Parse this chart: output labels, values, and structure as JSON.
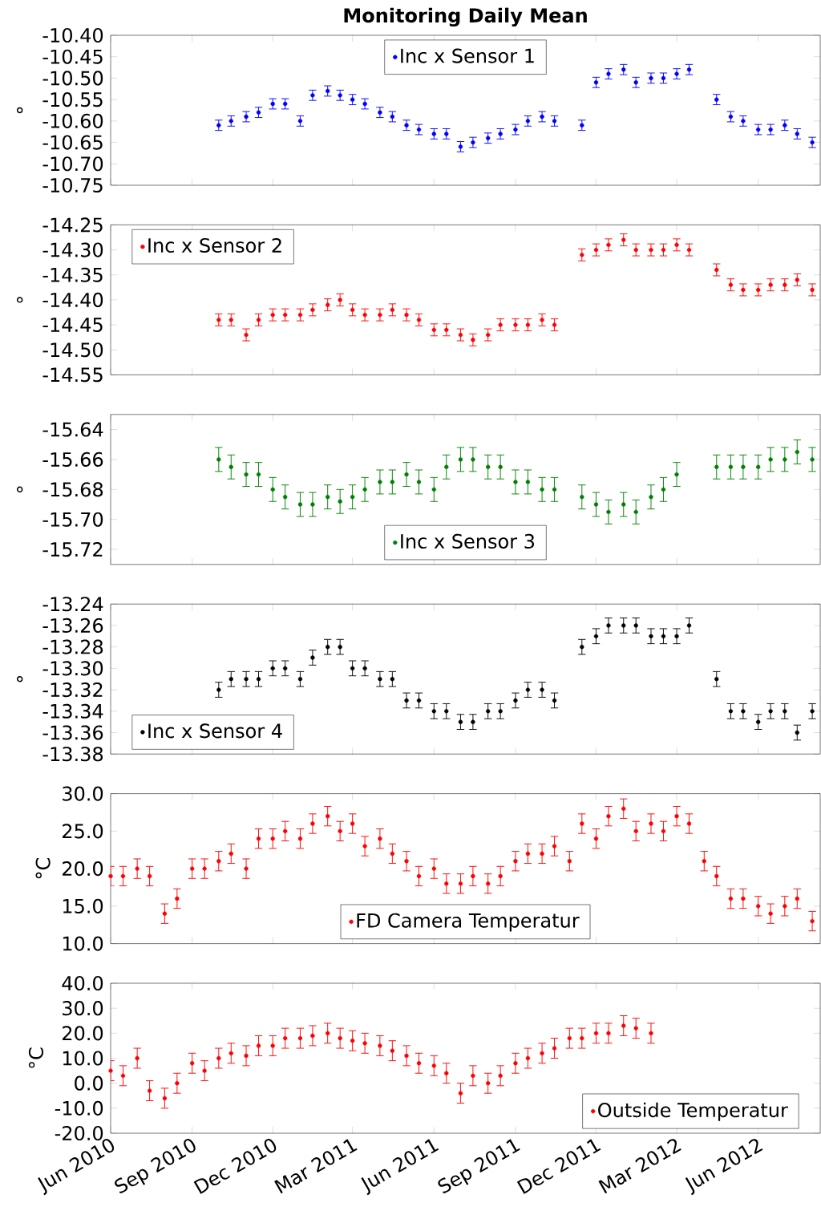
{
  "chart_data": [
    {
      "type": "scatter",
      "title": "Monitoring Daily Mean",
      "ylabel": "°",
      "marker": "circle",
      "legend": "top",
      "tick_labels": "y",
      "xlim": [
        "2010-06-01",
        "2012-08-10"
      ],
      "ylim": [
        -10.75,
        -10.4
      ],
      "yticks": [
        {
          "value": -10.75,
          "label": "-10.75"
        },
        {
          "value": -10.7,
          "label": "-10.70"
        },
        {
          "value": -10.65,
          "label": "-10.65"
        },
        {
          "value": -10.6,
          "label": "-10.60"
        },
        {
          "value": -10.55,
          "label": "-10.55"
        },
        {
          "value": -10.5,
          "label": "-10.50"
        },
        {
          "value": -10.45,
          "label": "-10.45"
        },
        {
          "value": -10.4,
          "label": "-10.40"
        }
      ],
      "x": [
        "2010-10-01",
        "2010-10-15",
        "2010-11-01",
        "2010-11-15",
        "2010-12-01",
        "2010-12-15",
        "2011-01-01",
        "2011-01-15",
        "2011-02-01",
        "2011-02-15",
        "2011-03-01",
        "2011-03-15",
        "2011-04-01",
        "2011-04-15",
        "2011-05-01",
        "2011-05-15",
        "2011-06-01",
        "2011-06-15",
        "2011-07-01",
        "2011-07-15",
        "2011-08-01",
        "2011-08-15",
        "2011-09-01",
        "2011-09-15",
        "2011-10-01",
        "2011-10-15",
        "2011-11-01",
        "2011-11-15",
        "2011-12-01",
        "2011-12-15",
        "2012-01-01",
        "2012-01-15",
        "2012-02-01",
        "2012-02-15",
        "2012-03-01",
        "2012-03-15",
        "2012-04-01",
        "2012-04-15",
        "2012-05-01",
        "2012-05-15",
        "2012-06-01",
        "2012-06-15",
        "2012-07-01",
        "2012-07-15",
        "2012-08-01"
      ],
      "series": [
        {
          "name": "Inc x Sensor 1",
          "color": "#0000ff",
          "values": [
            -10.61,
            -10.6,
            -10.59,
            -10.58,
            -10.56,
            -10.56,
            -10.6,
            -10.54,
            -10.53,
            -10.54,
            -10.55,
            -10.56,
            -10.58,
            -10.59,
            -10.61,
            -10.62,
            -10.63,
            -10.63,
            -10.66,
            -10.65,
            -10.64,
            -10.63,
            -10.62,
            -10.6,
            -10.59,
            -10.6,
            null,
            -10.61,
            -10.51,
            -10.49,
            -10.48,
            -10.51,
            -10.5,
            -10.5,
            -10.49,
            -10.48,
            null,
            -10.55,
            -10.59,
            -10.6,
            -10.62,
            -10.62,
            -10.61,
            -10.63,
            -10.65
          ],
          "errors": [
            0.012,
            0.012,
            0.012,
            0.012,
            0.012,
            0.012,
            0.012,
            0.012,
            0.012,
            0.012,
            0.012,
            0.012,
            0.012,
            0.012,
            0.012,
            0.012,
            0.012,
            0.012,
            0.012,
            0.012,
            0.012,
            0.012,
            0.012,
            0.012,
            0.012,
            0.012,
            null,
            0.012,
            0.012,
            0.012,
            0.012,
            0.012,
            0.012,
            0.012,
            0.012,
            0.012,
            null,
            0.012,
            0.012,
            0.012,
            0.012,
            0.012,
            0.012,
            0.012,
            0.012
          ]
        }
      ]
    },
    {
      "type": "scatter",
      "ylabel": "°",
      "marker": "circle",
      "legend": "top left",
      "tick_labels": "y",
      "xlim": [
        "2010-06-01",
        "2012-08-10"
      ],
      "ylim": [
        -14.55,
        -14.25
      ],
      "yticks": [
        {
          "value": -14.55,
          "label": "-14.55"
        },
        {
          "value": -14.5,
          "label": "-14.50"
        },
        {
          "value": -14.45,
          "label": "-14.45"
        },
        {
          "value": -14.4,
          "label": "-14.40"
        },
        {
          "value": -14.35,
          "label": "-14.35"
        },
        {
          "value": -14.3,
          "label": "-14.30"
        },
        {
          "value": -14.25,
          "label": "-14.25"
        }
      ],
      "x": [
        "2010-10-01",
        "2010-10-15",
        "2010-11-01",
        "2010-11-15",
        "2010-12-01",
        "2010-12-15",
        "2011-01-01",
        "2011-01-15",
        "2011-02-01",
        "2011-02-15",
        "2011-03-01",
        "2011-03-15",
        "2011-04-01",
        "2011-04-15",
        "2011-05-01",
        "2011-05-15",
        "2011-06-01",
        "2011-06-15",
        "2011-07-01",
        "2011-07-15",
        "2011-08-01",
        "2011-08-15",
        "2011-09-01",
        "2011-09-15",
        "2011-10-01",
        "2011-10-15",
        "2011-11-01",
        "2011-11-15",
        "2011-12-01",
        "2011-12-15",
        "2012-01-01",
        "2012-01-15",
        "2012-02-01",
        "2012-02-15",
        "2012-03-01",
        "2012-03-15",
        "2012-04-01",
        "2012-04-15",
        "2012-05-01",
        "2012-05-15",
        "2012-06-01",
        "2012-06-15",
        "2012-07-01",
        "2012-07-15",
        "2012-08-01"
      ],
      "series": [
        {
          "name": "Inc x Sensor 2",
          "color": "#ff0000",
          "values": [
            -14.44,
            -14.44,
            -14.47,
            -14.44,
            -14.43,
            -14.43,
            -14.43,
            -14.42,
            -14.41,
            -14.4,
            -14.42,
            -14.43,
            -14.43,
            -14.42,
            -14.43,
            -14.44,
            -14.46,
            -14.46,
            -14.47,
            -14.48,
            -14.47,
            -14.45,
            -14.45,
            -14.45,
            -14.44,
            -14.45,
            null,
            -14.31,
            -14.3,
            -14.29,
            -14.28,
            -14.3,
            -14.3,
            -14.3,
            -14.29,
            -14.3,
            null,
            -14.34,
            -14.37,
            -14.38,
            -14.38,
            -14.37,
            -14.37,
            -14.36,
            -14.38
          ],
          "errors": [
            0.012,
            0.012,
            0.012,
            0.012,
            0.012,
            0.012,
            0.012,
            0.012,
            0.012,
            0.012,
            0.012,
            0.012,
            0.012,
            0.012,
            0.012,
            0.012,
            0.012,
            0.012,
            0.012,
            0.012,
            0.012,
            0.012,
            0.012,
            0.012,
            0.012,
            0.012,
            null,
            0.012,
            0.012,
            0.012,
            0.012,
            0.012,
            0.012,
            0.012,
            0.012,
            0.012,
            null,
            0.012,
            0.012,
            0.012,
            0.012,
            0.012,
            0.012,
            0.012,
            0.012
          ]
        }
      ]
    },
    {
      "type": "scatter",
      "ylabel": "°",
      "marker": "circle",
      "legend": "bottom",
      "tick_labels": "y",
      "xlim": [
        "2010-06-01",
        "2012-08-10"
      ],
      "ylim": [
        -15.73,
        -15.63
      ],
      "yticks": [
        {
          "value": -15.72,
          "label": "-15.72"
        },
        {
          "value": -15.7,
          "label": "-15.70"
        },
        {
          "value": -15.68,
          "label": "-15.68"
        },
        {
          "value": -15.66,
          "label": "-15.66"
        },
        {
          "value": -15.64,
          "label": "-15.64"
        }
      ],
      "x": [
        "2010-10-01",
        "2010-10-15",
        "2010-11-01",
        "2010-11-15",
        "2010-12-01",
        "2010-12-15",
        "2011-01-01",
        "2011-01-15",
        "2011-02-01",
        "2011-02-15",
        "2011-03-01",
        "2011-03-15",
        "2011-04-01",
        "2011-04-15",
        "2011-05-01",
        "2011-05-15",
        "2011-06-01",
        "2011-06-15",
        "2011-07-01",
        "2011-07-15",
        "2011-08-01",
        "2011-08-15",
        "2011-09-01",
        "2011-09-15",
        "2011-10-01",
        "2011-10-15",
        "2011-11-01",
        "2011-11-15",
        "2011-12-01",
        "2011-12-15",
        "2012-01-01",
        "2012-01-15",
        "2012-02-01",
        "2012-02-15",
        "2012-03-01",
        "2012-03-15",
        "2012-04-01",
        "2012-04-15",
        "2012-05-01",
        "2012-05-15",
        "2012-06-01",
        "2012-06-15",
        "2012-07-01",
        "2012-07-15",
        "2012-08-01"
      ],
      "series": [
        {
          "name": "Inc x Sensor 3",
          "color": "#008000",
          "values": [
            -15.66,
            -15.665,
            -15.67,
            -15.67,
            -15.68,
            -15.685,
            -15.69,
            -15.69,
            -15.685,
            -15.688,
            -15.685,
            -15.68,
            -15.675,
            -15.675,
            -15.67,
            -15.675,
            -15.68,
            -15.665,
            -15.66,
            -15.66,
            -15.665,
            -15.665,
            -15.675,
            -15.675,
            -15.68,
            -15.68,
            null,
            -15.685,
            -15.69,
            -15.695,
            -15.69,
            -15.695,
            -15.685,
            -15.68,
            -15.67,
            null,
            null,
            -15.665,
            -15.665,
            -15.665,
            -15.665,
            -15.66,
            -15.66,
            -15.655,
            -15.66
          ],
          "errors": [
            0.008,
            0.008,
            0.008,
            0.008,
            0.008,
            0.008,
            0.008,
            0.008,
            0.008,
            0.008,
            0.008,
            0.008,
            0.008,
            0.008,
            0.008,
            0.008,
            0.008,
            0.008,
            0.008,
            0.008,
            0.008,
            0.008,
            0.008,
            0.008,
            0.008,
            0.008,
            null,
            0.008,
            0.008,
            0.008,
            0.008,
            0.008,
            0.008,
            0.008,
            0.008,
            null,
            null,
            0.008,
            0.008,
            0.008,
            0.008,
            0.008,
            0.008,
            0.008,
            0.008
          ]
        }
      ]
    },
    {
      "type": "scatter",
      "ylabel": "°",
      "marker": "circle",
      "legend": "bottom left",
      "tick_labels": "y",
      "xlim": [
        "2010-06-01",
        "2012-08-10"
      ],
      "ylim": [
        -13.38,
        -13.24
      ],
      "yticks": [
        {
          "value": -13.38,
          "label": "-13.38"
        },
        {
          "value": -13.36,
          "label": "-13.36"
        },
        {
          "value": -13.34,
          "label": "-13.34"
        },
        {
          "value": -13.32,
          "label": "-13.32"
        },
        {
          "value": -13.3,
          "label": "-13.30"
        },
        {
          "value": -13.28,
          "label": "-13.28"
        },
        {
          "value": -13.26,
          "label": "-13.26"
        },
        {
          "value": -13.24,
          "label": "-13.24"
        }
      ],
      "x": [
        "2010-10-01",
        "2010-10-15",
        "2010-11-01",
        "2010-11-15",
        "2010-12-01",
        "2010-12-15",
        "2011-01-01",
        "2011-01-15",
        "2011-02-01",
        "2011-02-15",
        "2011-03-01",
        "2011-03-15",
        "2011-04-01",
        "2011-04-15",
        "2011-05-01",
        "2011-05-15",
        "2011-06-01",
        "2011-06-15",
        "2011-07-01",
        "2011-07-15",
        "2011-08-01",
        "2011-08-15",
        "2011-09-01",
        "2011-09-15",
        "2011-10-01",
        "2011-10-15",
        "2011-11-01",
        "2011-11-15",
        "2011-12-01",
        "2011-12-15",
        "2012-01-01",
        "2012-01-15",
        "2012-02-01",
        "2012-02-15",
        "2012-03-01",
        "2012-03-15",
        "2012-04-01",
        "2012-04-15",
        "2012-05-01",
        "2012-05-15",
        "2012-06-01",
        "2012-06-15",
        "2012-07-01",
        "2012-07-15",
        "2012-08-01"
      ],
      "series": [
        {
          "name": "Inc x Sensor 4",
          "color": "#000000",
          "values": [
            -13.32,
            -13.31,
            -13.31,
            -13.31,
            -13.3,
            -13.3,
            -13.31,
            -13.29,
            -13.28,
            -13.28,
            -13.3,
            -13.3,
            -13.31,
            -13.31,
            -13.33,
            -13.33,
            -13.34,
            -13.34,
            -13.35,
            -13.35,
            -13.34,
            -13.34,
            -13.33,
            -13.32,
            -13.32,
            -13.33,
            null,
            -13.28,
            -13.27,
            -13.26,
            -13.26,
            -13.26,
            -13.27,
            -13.27,
            -13.27,
            -13.26,
            null,
            -13.31,
            -13.34,
            -13.34,
            -13.35,
            -13.34,
            -13.34,
            -13.36,
            -13.34
          ],
          "errors": [
            0.007,
            0.007,
            0.007,
            0.007,
            0.007,
            0.007,
            0.007,
            0.007,
            0.007,
            0.007,
            0.007,
            0.007,
            0.007,
            0.007,
            0.007,
            0.007,
            0.007,
            0.007,
            0.007,
            0.007,
            0.007,
            0.007,
            0.007,
            0.007,
            0.007,
            0.007,
            null,
            0.007,
            0.007,
            0.007,
            0.007,
            0.007,
            0.007,
            0.007,
            0.007,
            0.007,
            null,
            0.007,
            0.007,
            0.007,
            0.007,
            0.007,
            0.007,
            0.007,
            0.007
          ]
        }
      ]
    },
    {
      "type": "scatter",
      "ylabel": "°C",
      "marker": "circle",
      "legend": "bottom",
      "tick_labels": "y",
      "xlim": [
        "2010-06-01",
        "2012-08-10"
      ],
      "ylim": [
        10,
        30
      ],
      "yticks": [
        {
          "value": 10,
          "label": "10.0"
        },
        {
          "value": 15,
          "label": "15.0"
        },
        {
          "value": 20,
          "label": "20.0"
        },
        {
          "value": 25,
          "label": "25.0"
        },
        {
          "value": 30,
          "label": "30.0"
        }
      ],
      "x": [
        "2010-06-01",
        "2010-06-15",
        "2010-07-01",
        "2010-07-15",
        "2010-08-01",
        "2010-08-15",
        "2010-09-01",
        "2010-09-15",
        "2010-10-01",
        "2010-10-15",
        "2010-11-01",
        "2010-11-15",
        "2010-12-01",
        "2010-12-15",
        "2011-01-01",
        "2011-01-15",
        "2011-02-01",
        "2011-02-15",
        "2011-03-01",
        "2011-03-15",
        "2011-04-01",
        "2011-04-15",
        "2011-05-01",
        "2011-05-15",
        "2011-06-01",
        "2011-06-15",
        "2011-07-01",
        "2011-07-15",
        "2011-08-01",
        "2011-08-15",
        "2011-09-01",
        "2011-09-15",
        "2011-10-01",
        "2011-10-15",
        "2011-11-01",
        "2011-11-15",
        "2011-12-01",
        "2011-12-15",
        "2012-01-01",
        "2012-01-15",
        "2012-02-01",
        "2012-02-15",
        "2012-03-01",
        "2012-03-15",
        "2012-04-01",
        "2012-04-15",
        "2012-05-01",
        "2012-05-15",
        "2012-06-01",
        "2012-06-15",
        "2012-07-01",
        "2012-07-15",
        "2012-08-01"
      ],
      "series": [
        {
          "name": "FD Camera Temperatur",
          "color": "#ff0000",
          "values": [
            19,
            19,
            20,
            19,
            14,
            16,
            20,
            20,
            21,
            22,
            20,
            24,
            24,
            25,
            24,
            26,
            27,
            25,
            26,
            23,
            24,
            22,
            21,
            19,
            20,
            18,
            18,
            19,
            18,
            19,
            21,
            22,
            22,
            23,
            21,
            26,
            24,
            27,
            28,
            25,
            26,
            25,
            27,
            26,
            21,
            19,
            16,
            16,
            15,
            14,
            15,
            16,
            13
          ],
          "errors": [
            1.3,
            1.3,
            1.3,
            1.3,
            1.3,
            1.3,
            1.3,
            1.3,
            1.3,
            1.3,
            1.3,
            1.3,
            1.3,
            1.3,
            1.3,
            1.3,
            1.3,
            1.3,
            1.3,
            1.3,
            1.3,
            1.3,
            1.3,
            1.3,
            1.3,
            1.3,
            1.3,
            1.3,
            1.3,
            1.3,
            1.3,
            1.3,
            1.3,
            1.3,
            1.3,
            1.3,
            1.3,
            1.3,
            1.3,
            1.3,
            1.3,
            1.3,
            1.3,
            1.3,
            1.3,
            1.3,
            1.3,
            1.3,
            1.3,
            1.3,
            1.3,
            1.3,
            1.3
          ]
        }
      ]
    },
    {
      "type": "scatter",
      "ylabel": "°C",
      "marker": "circle",
      "legend": "bottom right",
      "xlim": [
        "2010-06-01",
        "2012-08-10"
      ],
      "xticks": [
        {
          "value": "2010-06-01",
          "label": "Jun 2010"
        },
        {
          "value": "2010-09-01",
          "label": "Sep 2010"
        },
        {
          "value": "2010-12-01",
          "label": "Dec 2010"
        },
        {
          "value": "2011-03-01",
          "label": "Mar 2011"
        },
        {
          "value": "2011-06-01",
          "label": "Jun 2011"
        },
        {
          "value": "2011-09-01",
          "label": "Sep 2011"
        },
        {
          "value": "2011-12-01",
          "label": "Dec 2011"
        },
        {
          "value": "2012-03-01",
          "label": "Mar 2012"
        },
        {
          "value": "2012-06-01",
          "label": "Jun 2012"
        }
      ],
      "ylim": [
        -20,
        40
      ],
      "yticks": [
        {
          "value": -20,
          "label": "-20.0"
        },
        {
          "value": -10,
          "label": "-10.0"
        },
        {
          "value": 0,
          "label": "0.0"
        },
        {
          "value": 10,
          "label": "10.0"
        },
        {
          "value": 20,
          "label": "20.0"
        },
        {
          "value": 30,
          "label": "30.0"
        },
        {
          "value": 40,
          "label": "40.0"
        }
      ],
      "x": [
        "2010-06-01",
        "2010-06-15",
        "2010-07-01",
        "2010-07-15",
        "2010-08-01",
        "2010-08-15",
        "2010-09-01",
        "2010-09-15",
        "2010-10-01",
        "2010-10-15",
        "2010-11-01",
        "2010-11-15",
        "2010-12-01",
        "2010-12-15",
        "2011-01-01",
        "2011-01-15",
        "2011-02-01",
        "2011-02-15",
        "2011-03-01",
        "2011-03-15",
        "2011-04-01",
        "2011-04-15",
        "2011-05-01",
        "2011-05-15",
        "2011-06-01",
        "2011-06-15",
        "2011-07-01",
        "2011-07-15",
        "2011-08-01",
        "2011-08-15",
        "2011-09-01",
        "2011-09-15",
        "2011-10-01",
        "2011-10-15",
        "2011-11-01",
        "2011-11-15",
        "2011-12-01",
        "2011-12-15",
        "2012-01-01",
        "2012-01-15",
        "2012-02-01"
      ],
      "series": [
        {
          "name": "Outside Temperatur",
          "color": "#ff0000",
          "values": [
            5,
            3,
            10,
            -3,
            -6,
            0,
            8,
            5,
            10,
            12,
            11,
            15,
            15,
            18,
            18,
            19,
            20,
            18,
            17,
            16,
            15,
            13,
            11,
            8,
            7,
            4,
            -4,
            3,
            0,
            3,
            8,
            10,
            12,
            14,
            18,
            18,
            20,
            20,
            23,
            22,
            20
          ],
          "errors": [
            4,
            4,
            4,
            4,
            4,
            4,
            4,
            4,
            4,
            4,
            4,
            4,
            4,
            4,
            4,
            4,
            4,
            4,
            4,
            4,
            4,
            4,
            4,
            4,
            4,
            4,
            4,
            4,
            4,
            4,
            4,
            4,
            4,
            4,
            4,
            4,
            4,
            4,
            4,
            4,
            4
          ]
        }
      ]
    }
  ]
}
